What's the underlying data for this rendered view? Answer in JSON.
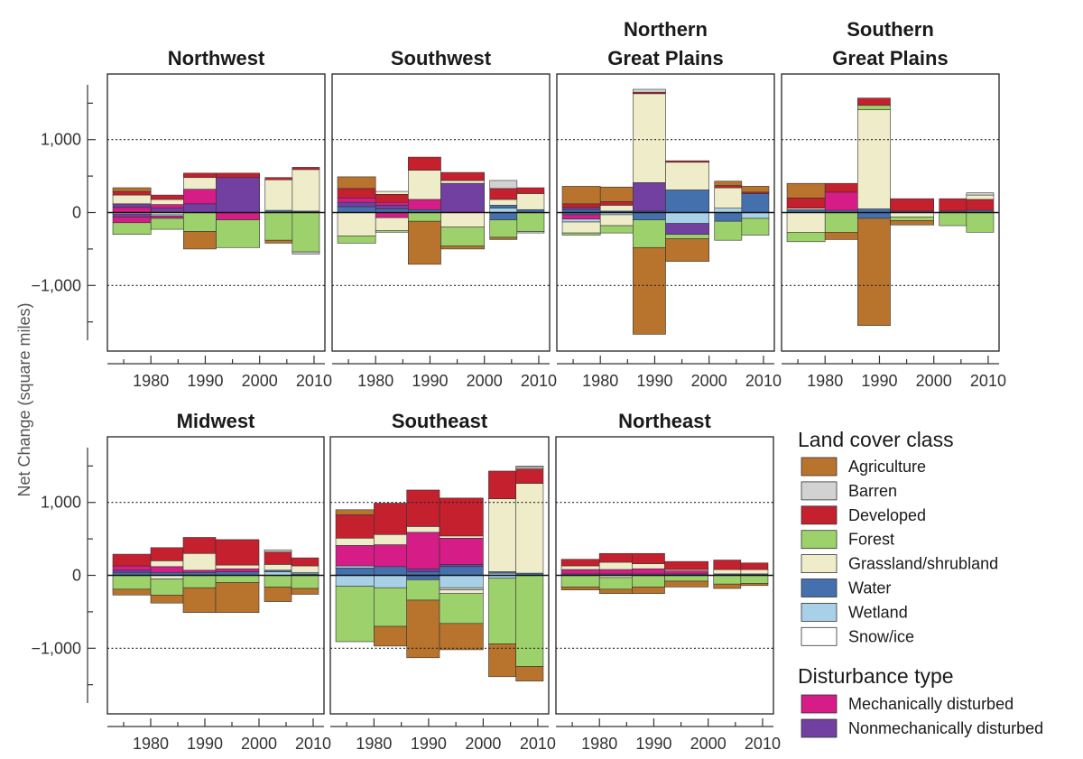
{
  "chart_data": {
    "type": "bar",
    "stacked": true,
    "ylabel": "Net Change (square miles)",
    "ylim": [
      -1900,
      1900
    ],
    "yticks": [
      -1000,
      0,
      1000
    ],
    "ytick_labels": [
      "−1,000",
      "0",
      "1,000"
    ],
    "xticks": [
      1980,
      1990,
      2000,
      2010
    ],
    "xlim": [
      1972,
      2012
    ],
    "gridlines_y": [
      -1000,
      1000
    ],
    "legend": {
      "placement": "bottom-right",
      "land_cover_title": "Land cover class",
      "land_cover_classes": [
        {
          "key": "agriculture",
          "label": "Agriculture",
          "color": "#b8732d"
        },
        {
          "key": "barren",
          "label": "Barren",
          "color": "#d2d2d2"
        },
        {
          "key": "developed",
          "label": "Developed",
          "color": "#c4202e"
        },
        {
          "key": "forest",
          "label": "Forest",
          "color": "#9dd16c"
        },
        {
          "key": "grassland",
          "label": "Grassland/shrubland",
          "color": "#efecca"
        },
        {
          "key": "water",
          "label": "Water",
          "color": "#4570ae"
        },
        {
          "key": "wetland",
          "label": "Wetland",
          "color": "#a8d0e6"
        },
        {
          "key": "snow",
          "label": "Snow/ice",
          "color": "#ffffff"
        }
      ],
      "disturbance_title": "Disturbance type",
      "disturbance_types": [
        {
          "key": "mechanical",
          "label": "Mechanically disturbed",
          "color": "#d61c86"
        },
        {
          "key": "nonmechanical",
          "label": "Nonmechanically disturbed",
          "color": "#7140a0"
        }
      ]
    },
    "regions": [
      {
        "name": "Northwest",
        "periods": [
          {
            "start": 1973,
            "end": 1980,
            "pos": {
              "mechanical": 70,
              "nonmechanical": 50,
              "grassland": 120,
              "developed": 50,
              "agriculture": 50
            },
            "neg": {
              "grassland": 20,
              "nonmechanical": 40,
              "mechanical": 80,
              "forest": 160
            }
          },
          {
            "start": 1980,
            "end": 1986,
            "pos": {
              "nonmechanical": 60,
              "mechanical": 50,
              "grassland": 70,
              "developed": 60
            },
            "neg": {
              "grassland": 30,
              "wetland": 20,
              "mechanical": 30,
              "forest": 150
            }
          },
          {
            "start": 1986,
            "end": 1992,
            "pos": {
              "nonmechanical": 120,
              "mechanical": 200,
              "grassland": 160,
              "developed": 60
            },
            "neg": {
              "forest": 260,
              "agriculture": 240
            }
          },
          {
            "start": 1992,
            "end": 2000,
            "pos": {
              "nonmechanical": 480,
              "developed": 60
            },
            "neg": {
              "mechanical": 100,
              "forest": 380
            }
          },
          {
            "start": 2001,
            "end": 2006,
            "pos": {
              "water": 30,
              "grassland": 420,
              "developed": 30
            },
            "neg": {
              "forest": 380,
              "agriculture": 40
            }
          },
          {
            "start": 2006,
            "end": 2011,
            "pos": {
              "water": 20,
              "grassland": 570,
              "developed": 30
            },
            "neg": {
              "forest": 540,
              "barren": 30
            }
          }
        ]
      },
      {
        "name": "Southwest",
        "periods": [
          {
            "start": 1973,
            "end": 1980,
            "pos": {
              "water": 80,
              "nonmechanical": 60,
              "mechanical": 60,
              "developed": 130,
              "agriculture": 160
            },
            "neg": {
              "grassland": 320,
              "forest": 100
            }
          },
          {
            "start": 1980,
            "end": 1986,
            "pos": {
              "water": 50,
              "nonmechanical": 50,
              "mechanical": 40,
              "developed": 110,
              "grassland": 40
            },
            "neg": {
              "mechanical": 70,
              "grassland": 180,
              "forest": 20
            }
          },
          {
            "start": 1986,
            "end": 1992,
            "pos": {
              "water": 40,
              "mechanical": 140,
              "grassland": 400,
              "developed": 180
            },
            "neg": {
              "forest": 120,
              "agriculture": 590
            }
          },
          {
            "start": 1992,
            "end": 2000,
            "pos": {
              "nonmechanical": 400,
              "grassland": 40,
              "developed": 110
            },
            "neg": {
              "grassland": 200,
              "forest": 260,
              "agriculture": 40
            }
          },
          {
            "start": 2001,
            "end": 2006,
            "pos": {
              "wetland": 60,
              "water": 40,
              "grassland": 80,
              "developed": 150,
              "barren": 110
            },
            "neg": {
              "water": 100,
              "forest": 240,
              "agriculture": 30
            }
          },
          {
            "start": 2006,
            "end": 2011,
            "pos": {
              "water": 40,
              "grassland": 220,
              "developed": 80
            },
            "neg": {
              "forest": 260,
              "barren": 20
            }
          }
        ]
      },
      {
        "name": "Northern\nGreat Plains",
        "periods": [
          {
            "start": 1973,
            "end": 1980,
            "pos": {
              "water": 40,
              "nonmechanical": 30,
              "developed": 50,
              "agriculture": 240
            },
            "neg": {
              "water": 30,
              "mechanical": 60,
              "wetland": 40,
              "grassland": 150,
              "forest": 30
            }
          },
          {
            "start": 1980,
            "end": 1986,
            "pos": {
              "water": 20,
              "grassland": 80,
              "developed": 50,
              "agriculture": 200
            },
            "neg": {
              "wetland": 30,
              "grassland": 150,
              "forest": 100
            }
          },
          {
            "start": 1986,
            "end": 1992,
            "pos": {
              "water": 20,
              "nonmechanical": 390,
              "grassland": 1220,
              "developed": 20,
              "barren": 40
            },
            "neg": {
              "water": 100,
              "forest": 380,
              "agriculture": 1190
            }
          },
          {
            "start": 1992,
            "end": 2000,
            "pos": {
              "water": 310,
              "grassland": 380,
              "developed": 20
            },
            "neg": {
              "wetland": 150,
              "nonmechanical": 150,
              "forest": 60,
              "agriculture": 310
            }
          },
          {
            "start": 2001,
            "end": 2006,
            "pos": {
              "wetland": 60,
              "grassland": 280,
              "developed": 30,
              "agriculture": 60
            },
            "neg": {
              "water": 120,
              "forest": 260
            }
          },
          {
            "start": 2006,
            "end": 2011,
            "pos": {
              "water": 260,
              "developed": 20,
              "agriculture": 80
            },
            "neg": {
              "wetland": 80,
              "forest": 230
            }
          }
        ]
      },
      {
        "name": "Southern\nGreat Plains",
        "periods": [
          {
            "start": 1973,
            "end": 1980,
            "pos": {
              "water": 40,
              "grassland": 20,
              "developed": 140,
              "agriculture": 200
            },
            "neg": {
              "grassland": 270,
              "forest": 130
            }
          },
          {
            "start": 1980,
            "end": 1986,
            "pos": {
              "water": 30,
              "mechanical": 250,
              "developed": 120
            },
            "neg": {
              "forest": 270,
              "agriculture": 100
            }
          },
          {
            "start": 1986,
            "end": 1992,
            "pos": {
              "water": 50,
              "grassland": 1360,
              "forest": 60,
              "developed": 100
            },
            "neg": {
              "water": 80,
              "agriculture": 1470
            }
          },
          {
            "start": 1992,
            "end": 2000,
            "pos": {
              "water": 20,
              "developed": 170
            },
            "neg": {
              "grassland": 60,
              "forest": 50,
              "agriculture": 60
            }
          },
          {
            "start": 2001,
            "end": 2006,
            "pos": {
              "water": 20,
              "developed": 170
            },
            "neg": {
              "forest": 180
            }
          },
          {
            "start": 2006,
            "end": 2011,
            "pos": {
              "water": 30,
              "developed": 150,
              "grassland": 60,
              "barren": 30
            },
            "neg": {
              "forest": 270
            }
          }
        ]
      },
      {
        "name": "Midwest",
        "periods": [
          {
            "start": 1973,
            "end": 1980,
            "pos": {
              "water": 40,
              "nonmechanical": 30,
              "mechanical": 60,
              "developed": 160
            },
            "neg": {
              "forest": 190,
              "agriculture": 80
            }
          },
          {
            "start": 1980,
            "end": 1986,
            "pos": {
              "water": 40,
              "mechanical": 80,
              "grassland": 80,
              "developed": 180
            },
            "neg": {
              "grassland": 50,
              "forest": 220,
              "agriculture": 110
            }
          },
          {
            "start": 1986,
            "end": 1992,
            "pos": {
              "water": 40,
              "mechanical": 30,
              "grassland": 230,
              "developed": 220
            },
            "neg": {
              "forest": 170,
              "agriculture": 340
            }
          },
          {
            "start": 1992,
            "end": 2000,
            "pos": {
              "water": 50,
              "mechanical": 40,
              "grassland": 50,
              "developed": 350
            },
            "neg": {
              "forest": 100,
              "agriculture": 410
            }
          },
          {
            "start": 2001,
            "end": 2006,
            "pos": {
              "wetland": 50,
              "water": 20,
              "grassland": 80,
              "developed": 170,
              "barren": 30
            },
            "neg": {
              "forest": 160,
              "agriculture": 200
            }
          },
          {
            "start": 2006,
            "end": 2011,
            "pos": {
              "water": 20,
              "wetland": 20,
              "grassland": 90,
              "developed": 110
            },
            "neg": {
              "forest": 180,
              "agriculture": 80
            }
          }
        ]
      },
      {
        "name": "Southeast",
        "periods": [
          {
            "start": 1973,
            "end": 1980,
            "pos": {
              "water": 100,
              "wetland": 30,
              "mechanical": 280,
              "grassland": 100,
              "developed": 320,
              "agriculture": 70
            },
            "neg": {
              "wetland": 150,
              "forest": 760
            }
          },
          {
            "start": 1980,
            "end": 1986,
            "pos": {
              "water": 120,
              "mechanical": 300,
              "grassland": 140,
              "developed": 430
            },
            "neg": {
              "wetland": 170,
              "forest": 530,
              "agriculture": 270
            }
          },
          {
            "start": 1986,
            "end": 1992,
            "pos": {
              "water": 50,
              "nonmechanical": 40,
              "mechanical": 500,
              "grassland": 80,
              "developed": 500
            },
            "neg": {
              "water": 60,
              "forest": 280,
              "agriculture": 790
            }
          },
          {
            "start": 1992,
            "end": 2000,
            "pos": {
              "water": 120,
              "nonmechanical": 30,
              "mechanical": 360,
              "grassland": 30,
              "developed": 520
            },
            "neg": {
              "wetland": 170,
              "barren": 30,
              "grassland": 50,
              "forest": 410,
              "agriculture": 360
            }
          },
          {
            "start": 2001,
            "end": 2006,
            "pos": {
              "wetland": 30,
              "water": 20,
              "grassland": 1000,
              "developed": 380
            },
            "neg": {
              "wetland": 40,
              "forest": 900,
              "agriculture": 450
            }
          },
          {
            "start": 2006,
            "end": 2011,
            "pos": {
              "water": 30,
              "grassland": 1230,
              "developed": 200,
              "snow": 20,
              "barren": 20
            },
            "neg": {
              "forest": 1250,
              "agriculture": 200
            }
          }
        ]
      },
      {
        "name": "Northeast",
        "periods": [
          {
            "start": 1973,
            "end": 1980,
            "pos": {
              "water": 20,
              "mechanical": 60,
              "grassland": 50,
              "developed": 90
            },
            "neg": {
              "forest": 160,
              "agriculture": 40
            }
          },
          {
            "start": 1980,
            "end": 1986,
            "pos": {
              "water": 20,
              "mechanical": 60,
              "grassland": 100,
              "developed": 120
            },
            "neg": {
              "grassland": 30,
              "forest": 160,
              "agriculture": 60
            }
          },
          {
            "start": 1986,
            "end": 1992,
            "pos": {
              "water": 20,
              "mechanical": 70,
              "grassland": 70,
              "developed": 140
            },
            "neg": {
              "forest": 160,
              "agriculture": 90
            }
          },
          {
            "start": 1992,
            "end": 2000,
            "pos": {
              "water": 20,
              "mechanical": 40,
              "grassland": 20,
              "developed": 110
            },
            "neg": {
              "forest": 80,
              "agriculture": 80
            }
          },
          {
            "start": 2001,
            "end": 2006,
            "pos": {
              "water": 20,
              "grassland": 60,
              "developed": 130
            },
            "neg": {
              "forest": 120,
              "agriculture": 60
            }
          },
          {
            "start": 2006,
            "end": 2011,
            "pos": {
              "water": 20,
              "grassland": 60,
              "developed": 90
            },
            "neg": {
              "forest": 110,
              "agriculture": 30
            }
          }
        ]
      }
    ]
  }
}
